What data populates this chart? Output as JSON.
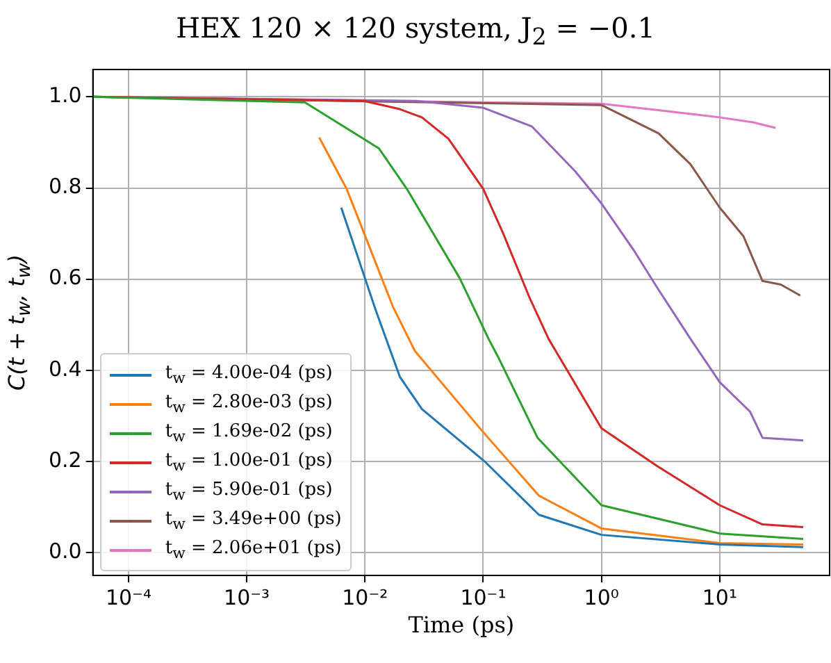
{
  "chart_data": {
    "type": "line",
    "title": "HEX 120 × 120 system, J$_{2}$ = −0.1",
    "xlabel": "Time (ps)",
    "ylabel": "C(t + t$_{w}$, t$_{w}$)",
    "log": "x",
    "grid": true,
    "legend": "bottom left",
    "marker": "none",
    "line_style": "solid",
    "xlim": [
      5e-05,
      85
    ],
    "xticks": [
      {
        "value": 0.0001,
        "label": "10⁻⁴"
      },
      {
        "value": 0.001,
        "label": "10⁻³"
      },
      {
        "value": 0.01,
        "label": "10⁻²"
      },
      {
        "value": 0.1,
        "label": "10⁻¹"
      },
      {
        "value": 1,
        "label": "10⁰"
      },
      {
        "value": 10,
        "label": "10¹"
      }
    ],
    "ylim": [
      -0.05,
      1.06
    ],
    "yticks": [
      {
        "value": 0,
        "label": "0.0"
      },
      {
        "value": 0.2,
        "label": "0.2"
      },
      {
        "value": 0.4,
        "label": "0.4"
      },
      {
        "value": 0.6,
        "label": "0.6"
      },
      {
        "value": 0.8,
        "label": "0.8"
      },
      {
        "value": 1,
        "label": "1.0"
      }
    ],
    "series": [
      {
        "name": "t$_{w}$ = 4.00e-04 (ps)",
        "color": "#1f77b4",
        "x": [
          0.0063,
          0.0124,
          0.0197,
          0.0303,
          0.103,
          0.296,
          1,
          10,
          50.8
        ],
        "values": [
          0.757,
          0.53,
          0.386,
          0.315,
          0.2,
          0.083,
          0.039,
          0.018,
          0.012
        ]
      },
      {
        "name": "t$_{w}$ = 2.80e-03 (ps)",
        "color": "#ff7f0e",
        "x": [
          0.0041,
          0.007,
          0.0172,
          0.0265,
          0.098,
          0.296,
          1,
          10,
          50.8
        ],
        "values": [
          0.911,
          0.798,
          0.54,
          0.442,
          0.267,
          0.125,
          0.053,
          0.021,
          0.018
        ]
      },
      {
        "name": "t$_{w}$ = 1.69e-02 (ps)",
        "color": "#2ca02c",
        "x": [
          5e-05,
          0.0031,
          0.0131,
          0.0226,
          0.0633,
          0.111,
          0.135,
          0.288,
          1,
          10,
          50.8
        ],
        "values": [
          1.0,
          0.988,
          0.887,
          0.798,
          0.602,
          0.469,
          0.427,
          0.252,
          0.104,
          0.042,
          0.03
        ]
      },
      {
        "name": "t$_{w}$ = 1.00e-01 (ps)",
        "color": "#d62728",
        "x": [
          5e-05,
          0.0098,
          0.0197,
          0.0303,
          0.0508,
          0.1,
          0.146,
          0.245,
          0.357,
          1,
          2.95,
          10,
          23,
          50.8
        ],
        "values": [
          1.0,
          0.991,
          0.973,
          0.955,
          0.908,
          0.798,
          0.703,
          0.561,
          0.469,
          0.273,
          0.19,
          0.104,
          0.062,
          0.056
        ]
      },
      {
        "name": "t$_{w}$ = 5.90e-01 (ps)",
        "color": "#9467bd",
        "x": [
          5e-05,
          0.0273,
          0.1,
          0.258,
          0.598,
          1,
          1.86,
          2.95,
          5.66,
          10,
          18.1,
          23,
          50.8
        ],
        "values": [
          1.0,
          0.991,
          0.976,
          0.935,
          0.837,
          0.766,
          0.665,
          0.582,
          0.469,
          0.374,
          0.309,
          0.252,
          0.246
        ]
      },
      {
        "name": "t$_{w}$ = 3.49e+00 (ps)",
        "color": "#8c564b",
        "x": [
          5e-05,
          1,
          3.04,
          5.66,
          10,
          15.9,
          23,
          32.9,
          48
        ],
        "values": [
          1.0,
          0.982,
          0.92,
          0.852,
          0.757,
          0.694,
          0.596,
          0.588,
          0.564
        ]
      },
      {
        "name": "t$_{w}$ = 2.06e+01 (ps)",
        "color": "#e377c2",
        "x": [
          5e-05,
          0.1,
          1,
          3.2,
          10,
          19.1,
          29.7
        ],
        "values": [
          1.0,
          0.988,
          0.985,
          0.97,
          0.955,
          0.944,
          0.932
        ]
      }
    ]
  }
}
